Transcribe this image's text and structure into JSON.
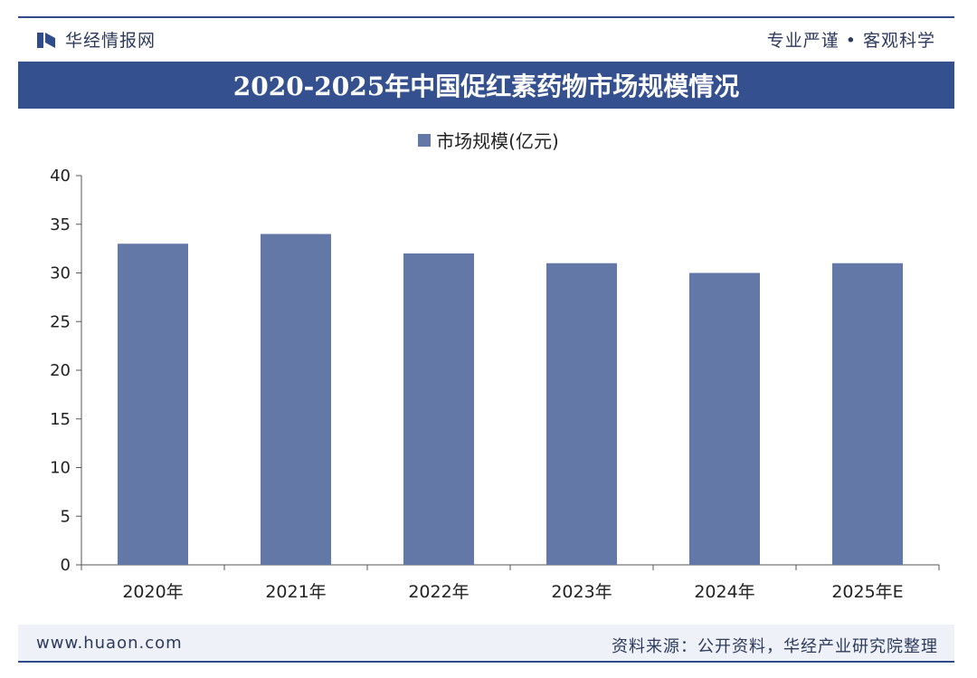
{
  "header": {
    "brand": "华经情报网",
    "slogan": "专业严谨 • 客观科学"
  },
  "colors": {
    "bar": "#6378a6",
    "title_bg": "#34508f"
  },
  "chart_data": {
    "type": "bar",
    "title": "2020-2025年中国促红素药物市场规模情况",
    "categories": [
      "2020年",
      "2021年",
      "2022年",
      "2023年",
      "2024年",
      "2025年E"
    ],
    "series": [
      {
        "name": "市场规模(亿元)",
        "values": [
          33,
          34,
          32,
          31,
          30,
          31
        ]
      }
    ],
    "yticks": [
      "0",
      "5",
      "10",
      "15",
      "20",
      "25",
      "30",
      "35",
      "40"
    ],
    "ylim": [
      0,
      40
    ],
    "xlabel": "",
    "ylabel": "",
    "legend": "top-center",
    "grid": false
  },
  "footer": {
    "url": "www.huaon.com",
    "source": "资料来源：公开资料，华经产业研究院整理"
  }
}
